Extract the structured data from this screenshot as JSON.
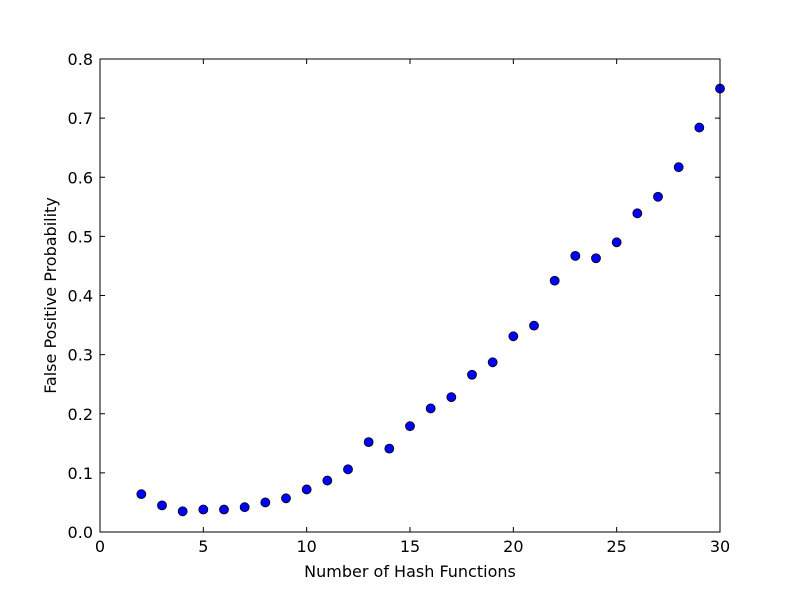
{
  "chart_data": {
    "type": "scatter",
    "title": "",
    "xlabel": "Number of Hash Functions",
    "ylabel": "False Positive Probability",
    "xlim": [
      0,
      30
    ],
    "ylim": [
      0.0,
      0.8
    ],
    "xticks": [
      0,
      5,
      10,
      15,
      20,
      25,
      30
    ],
    "xtick_labels": [
      "0",
      "5",
      "10",
      "15",
      "20",
      "25",
      "30"
    ],
    "yticks": [
      0.0,
      0.1,
      0.2,
      0.3,
      0.4,
      0.5,
      0.6,
      0.7,
      0.8
    ],
    "ytick_labels": [
      "0.0",
      "0.1",
      "0.2",
      "0.3",
      "0.4",
      "0.5",
      "0.6",
      "0.7",
      "0.8"
    ],
    "grid": false,
    "marker_color": "#0000ff",
    "marker_edge_color": "#000000",
    "x": [
      2,
      3,
      4,
      5,
      6,
      7,
      8,
      9,
      10,
      11,
      12,
      13,
      14,
      15,
      16,
      17,
      18,
      19,
      20,
      21,
      22,
      23,
      24,
      25,
      26,
      27,
      28,
      29,
      30
    ],
    "y": [
      0.064,
      0.045,
      0.035,
      0.038,
      0.038,
      0.042,
      0.05,
      0.057,
      0.072,
      0.087,
      0.106,
      0.152,
      0.141,
      0.179,
      0.209,
      0.228,
      0.266,
      0.287,
      0.331,
      0.349,
      0.425,
      0.467,
      0.463,
      0.49,
      0.539,
      0.567,
      0.617,
      0.684,
      0.75
    ]
  }
}
